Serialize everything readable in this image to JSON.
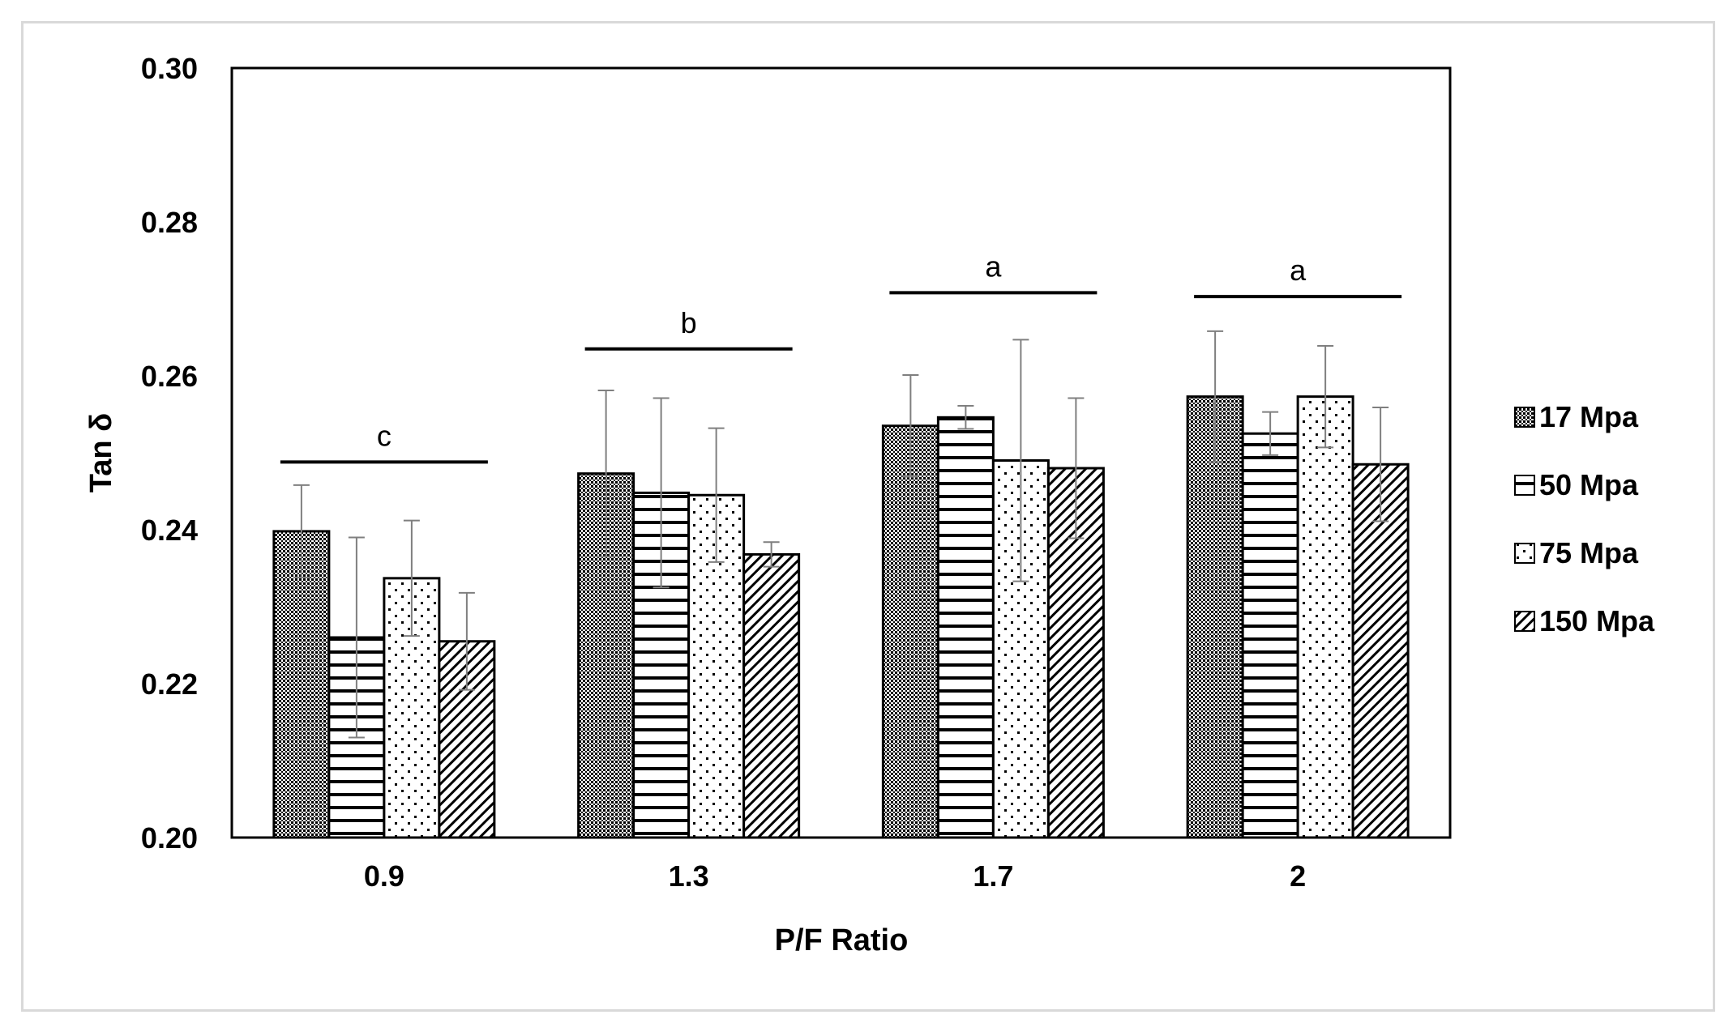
{
  "chart_data": {
    "type": "bar",
    "title": "",
    "xlabel": "P/F Ratio",
    "ylabel": "Tan δ",
    "ylim": [
      0.2,
      0.3
    ],
    "yticks": [
      "0.20",
      "0.22",
      "0.24",
      "0.26",
      "0.28",
      "0.30"
    ],
    "categories": [
      "0.9",
      "1.3",
      "1.7",
      "2"
    ],
    "series": [
      {
        "name": "17 Mpa",
        "pattern": "crosshatch",
        "values": [
          0.2398,
          0.2473,
          0.2535,
          0.2573
        ],
        "errors": [
          0.006,
          0.0108,
          0.0066,
          0.0085
        ]
      },
      {
        "name": "50 Mpa",
        "pattern": "horizontal",
        "values": [
          0.226,
          0.2448,
          0.2546,
          0.2525
        ],
        "errors": [
          0.013,
          0.0123,
          0.0015,
          0.0028
        ]
      },
      {
        "name": "75 Mpa",
        "pattern": "dots",
        "values": [
          0.2337,
          0.2445,
          0.249,
          0.2573
        ],
        "errors": [
          0.0075,
          0.0087,
          0.0157,
          0.0066
        ]
      },
      {
        "name": "150 Mpa",
        "pattern": "diagonal",
        "values": [
          0.2255,
          0.2368,
          0.248,
          0.2485
        ],
        "errors": [
          0.0063,
          0.0016,
          0.0091,
          0.0074
        ]
      }
    ],
    "significance": [
      {
        "category": "0.9",
        "letter": "c",
        "level": 0.2488
      },
      {
        "category": "1.3",
        "letter": "b",
        "level": 0.2635
      },
      {
        "category": "1.7",
        "letter": "a",
        "level": 0.2708
      },
      {
        "category": "2",
        "letter": "a",
        "level": 0.2703
      }
    ],
    "legend_position": "right",
    "grid": false,
    "colors": {
      "bar_fill": "#ffffff",
      "pattern": "#000000",
      "error_bar": "#7f7f7f",
      "axis": "#000000"
    }
  }
}
